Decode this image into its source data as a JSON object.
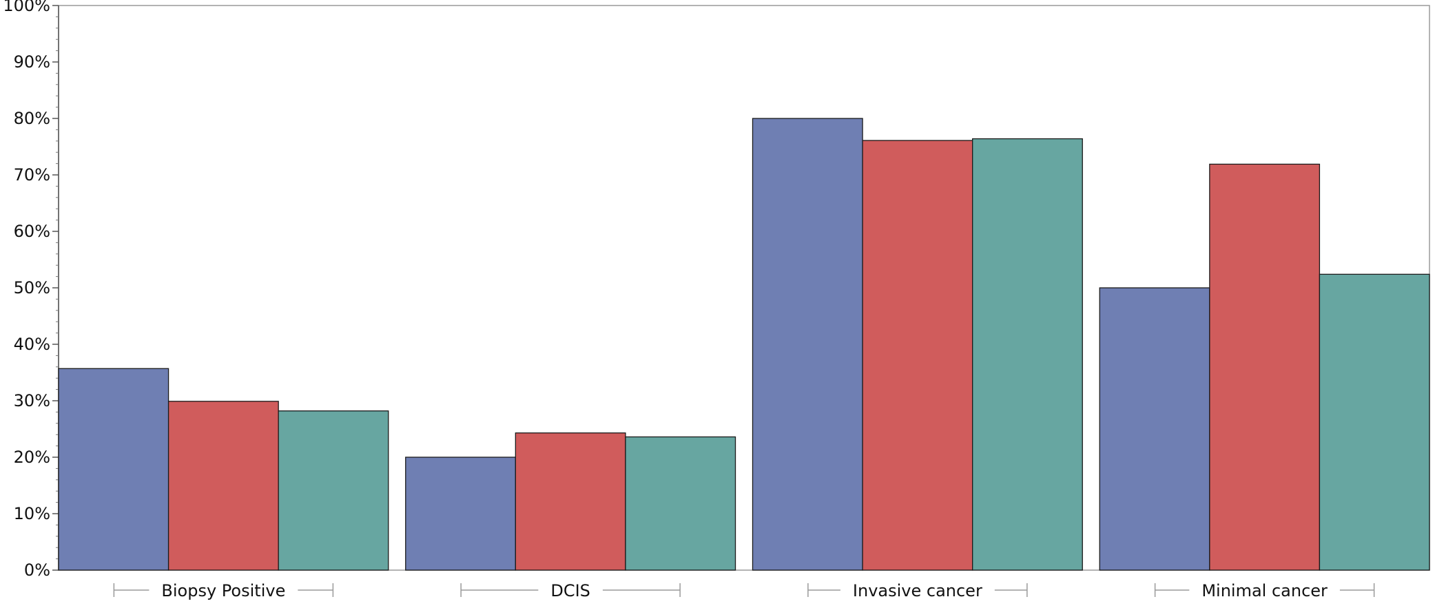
{
  "chart_data": {
    "type": "bar",
    "categories": [
      "Biopsy Positive",
      "DCIS",
      "Invasive cancer",
      "Minimal cancer"
    ],
    "series": [
      {
        "color": "#6f7fb3",
        "values": [
          35.7,
          20.0,
          80.0,
          50.0
        ]
      },
      {
        "color": "#d05c5c",
        "values": [
          29.9,
          24.3,
          76.1,
          71.9
        ]
      },
      {
        "color": "#67a6a1",
        "values": [
          28.2,
          23.6,
          76.4,
          52.4
        ]
      }
    ],
    "ylim": [
      0,
      100
    ],
    "yticks": [
      "0%",
      "10%",
      "20%",
      "30%",
      "40%",
      "50%",
      "60%",
      "70%",
      "80%",
      "90%",
      "100%"
    ],
    "title": "",
    "xlabel": "",
    "ylabel": "",
    "grid": false,
    "legend": "none"
  }
}
